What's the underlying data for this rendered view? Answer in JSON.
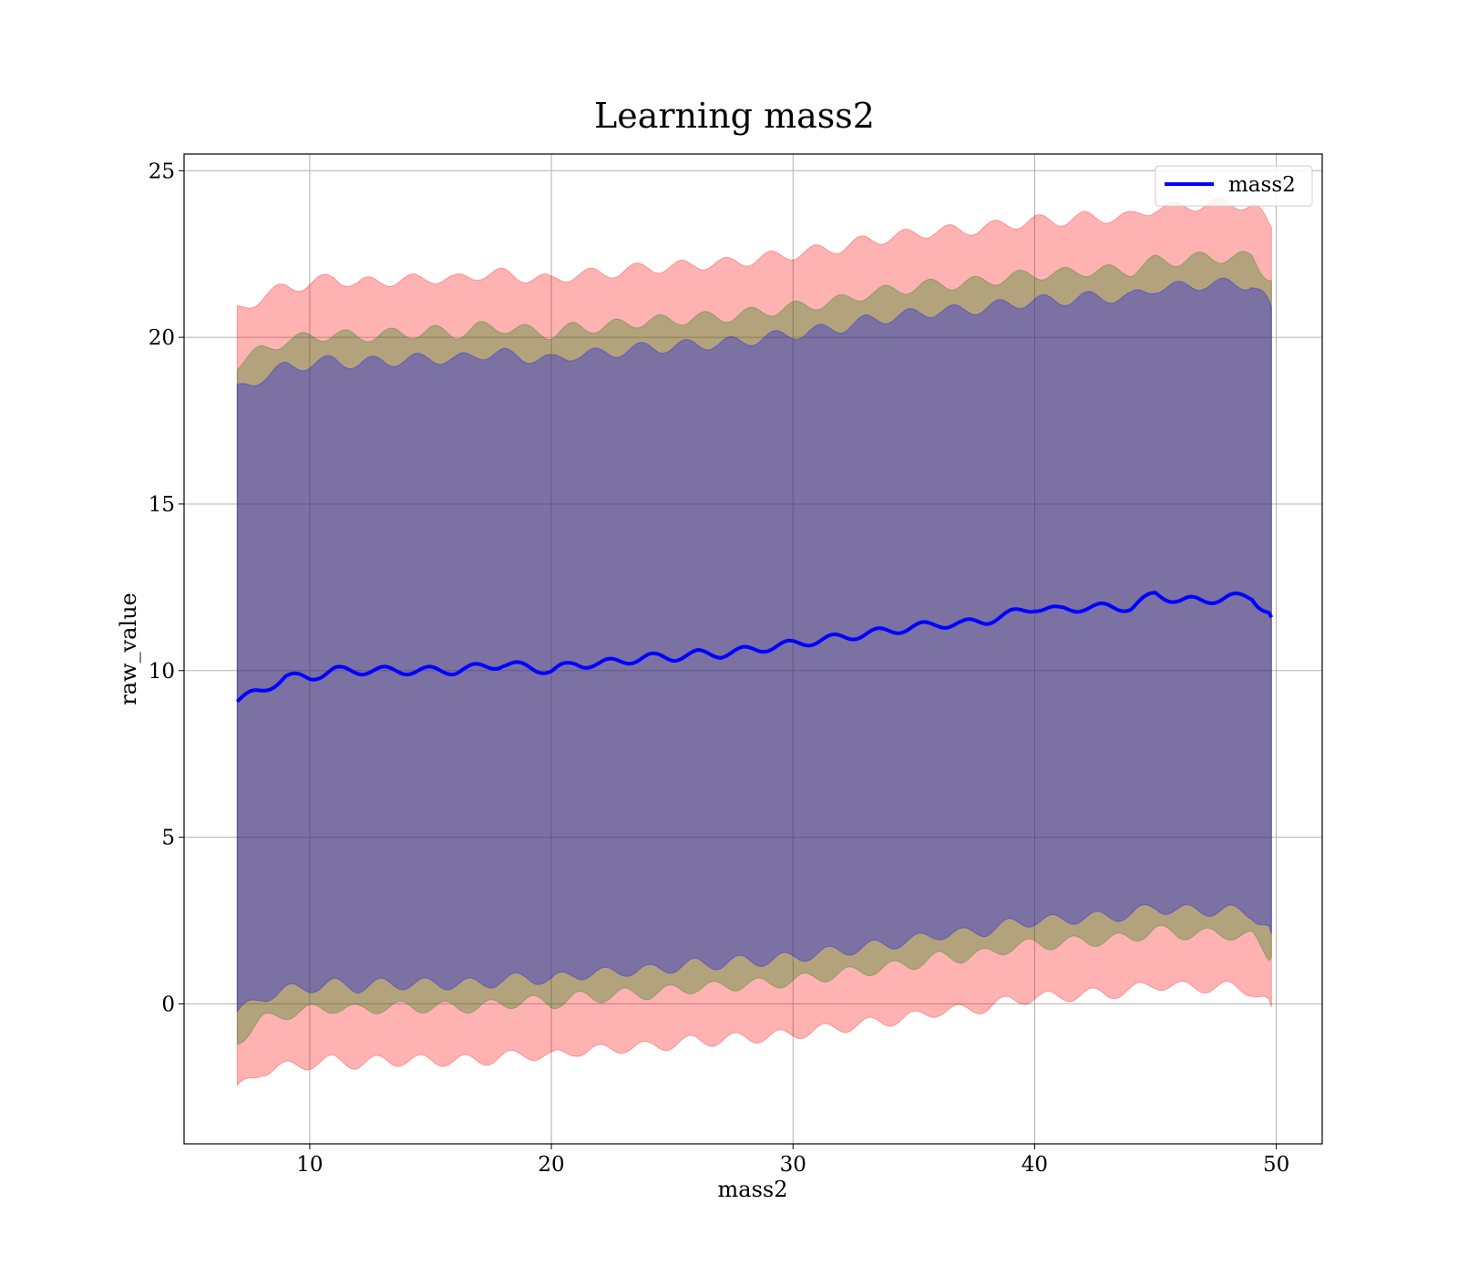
{
  "chart_data": {
    "type": "line",
    "title": "Learning mass2",
    "xlabel": "mass2",
    "ylabel": "raw_value",
    "xlim": [
      4.8,
      51.9
    ],
    "ylim": [
      -4.2,
      25.5
    ],
    "xticks": [
      10,
      20,
      30,
      40,
      50
    ],
    "yticks": [
      0,
      5,
      10,
      15,
      20,
      25
    ],
    "grid": true,
    "legend": {
      "position": "upper-right",
      "entries": [
        "mass2"
      ]
    },
    "x": [
      7,
      8,
      9,
      10,
      11,
      12,
      13,
      14,
      15,
      16,
      17,
      18,
      19,
      20,
      21,
      22,
      23,
      24,
      25,
      26,
      27,
      28,
      29,
      30,
      31,
      32,
      33,
      34,
      35,
      36,
      37,
      38,
      39,
      40,
      41,
      42,
      43,
      44,
      45,
      46,
      47,
      48,
      49,
      49.8
    ],
    "series": [
      {
        "name": "mass2",
        "color": "#0000ff",
        "values": [
          9.1,
          9.4,
          9.8,
          9.8,
          10.0,
          10.0,
          10.0,
          10.0,
          10.0,
          10.0,
          10.1,
          10.2,
          10.1,
          10.0,
          10.2,
          10.2,
          10.3,
          10.4,
          10.4,
          10.5,
          10.5,
          10.6,
          10.7,
          10.8,
          10.9,
          11.0,
          11.1,
          11.2,
          11.3,
          11.4,
          11.4,
          11.5,
          11.7,
          11.9,
          11.8,
          11.9,
          11.9,
          11.9,
          12.3,
          12.1,
          12.1,
          12.2,
          12.2,
          11.6
        ]
      }
    ],
    "bands": [
      {
        "color": "#ff0000",
        "opacity": 0.3,
        "lower": [
          -2.6,
          -2.0,
          -1.9,
          -1.8,
          -1.7,
          -1.8,
          -1.7,
          -1.7,
          -1.7,
          -1.7,
          -1.7,
          -1.6,
          -1.5,
          -1.6,
          -1.4,
          -1.4,
          -1.3,
          -1.3,
          -1.2,
          -1.1,
          -1.1,
          -1.0,
          -1.0,
          -0.9,
          -0.8,
          -0.7,
          -0.6,
          -0.5,
          -0.4,
          -0.2,
          -0.2,
          -0.1,
          0.1,
          0.2,
          0.2,
          0.3,
          0.3,
          0.4,
          0.6,
          0.5,
          0.5,
          0.5,
          0.4,
          -0.1
        ],
        "upper": [
          20.8,
          21.2,
          21.5,
          21.6,
          21.8,
          21.6,
          21.7,
          21.7,
          21.8,
          21.7,
          21.9,
          21.9,
          21.8,
          21.7,
          21.9,
          21.9,
          22.0,
          22.1,
          22.1,
          22.2,
          22.2,
          22.3,
          22.4,
          22.5,
          22.6,
          22.7,
          22.9,
          23.0,
          23.1,
          23.2,
          23.2,
          23.3,
          23.4,
          23.5,
          23.5,
          23.6,
          23.6,
          23.6,
          23.9,
          23.9,
          24.0,
          24.0,
          24.0,
          23.3
        ]
      },
      {
        "color": "#008000",
        "opacity": 0.3,
        "lower": [
          -1.1,
          -0.5,
          -0.3,
          -0.2,
          -0.1,
          -0.2,
          -0.1,
          -0.1,
          -0.1,
          -0.1,
          -0.1,
          0.0,
          0.1,
          0.0,
          0.2,
          0.2,
          0.3,
          0.3,
          0.4,
          0.5,
          0.5,
          0.6,
          0.6,
          0.7,
          0.8,
          0.9,
          1.0,
          1.1,
          1.2,
          1.4,
          1.4,
          1.5,
          1.7,
          1.8,
          1.8,
          1.9,
          1.9,
          2.0,
          2.2,
          2.1,
          2.1,
          2.1,
          2.0,
          1.4
        ],
        "upper": [
          19.2,
          19.6,
          19.9,
          20.0,
          20.1,
          20.0,
          20.1,
          20.1,
          20.2,
          20.1,
          20.3,
          20.3,
          20.2,
          20.1,
          20.3,
          20.3,
          20.4,
          20.5,
          20.5,
          20.6,
          20.6,
          20.7,
          20.8,
          20.9,
          21.0,
          21.1,
          21.3,
          21.4,
          21.5,
          21.6,
          21.6,
          21.7,
          21.8,
          21.9,
          21.9,
          22.0,
          22.0,
          22.0,
          22.3,
          22.3,
          22.4,
          22.4,
          22.4,
          21.7
        ]
      },
      {
        "color": "#0000ff",
        "opacity": 0.3,
        "lower": [
          -0.3,
          0.2,
          0.4,
          0.5,
          0.6,
          0.5,
          0.6,
          0.6,
          0.6,
          0.6,
          0.6,
          0.7,
          0.8,
          0.7,
          0.9,
          0.9,
          1.0,
          1.0,
          1.1,
          1.2,
          1.2,
          1.3,
          1.3,
          1.4,
          1.5,
          1.6,
          1.7,
          1.8,
          1.9,
          2.1,
          2.1,
          2.2,
          2.4,
          2.5,
          2.5,
          2.6,
          2.6,
          2.7,
          2.9,
          2.8,
          2.8,
          2.8,
          2.7,
          2.1
        ],
        "upper": [
          18.4,
          18.8,
          19.1,
          19.2,
          19.3,
          19.2,
          19.3,
          19.3,
          19.4,
          19.3,
          19.5,
          19.5,
          19.4,
          19.3,
          19.5,
          19.5,
          19.6,
          19.7,
          19.7,
          19.8,
          19.8,
          19.9,
          20.0,
          20.1,
          20.2,
          20.3,
          20.5,
          20.6,
          20.7,
          20.8,
          20.8,
          20.9,
          21.0,
          21.1,
          21.1,
          21.2,
          21.2,
          21.2,
          21.5,
          21.5,
          21.6,
          21.6,
          21.6,
          20.9
        ]
      }
    ]
  }
}
